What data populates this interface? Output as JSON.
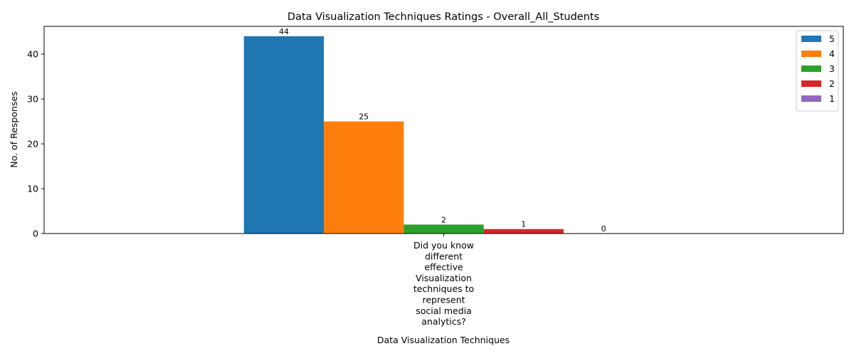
{
  "chart_data": {
    "type": "bar",
    "title": "Data Visualization Techniques Ratings - Overall_All_Students",
    "xlabel": "Data Visualization Techniques",
    "ylabel": "No. of Responses",
    "categories": [
      "Did you know different effective Visualization techniques to represent social media analytics?"
    ],
    "category_lines": [
      [
        "Did you know",
        "different",
        "effective",
        "Visualization",
        "techniques to",
        "represent",
        "social media",
        "analytics?"
      ]
    ],
    "series": [
      {
        "name": "5",
        "values": [
          44
        ],
        "color": "#1f77b4"
      },
      {
        "name": "4",
        "values": [
          25
        ],
        "color": "#ff7f0e"
      },
      {
        "name": "3",
        "values": [
          2
        ],
        "color": "#2ca02c"
      },
      {
        "name": "2",
        "values": [
          1
        ],
        "color": "#d62728"
      },
      {
        "name": "1",
        "values": [
          0
        ],
        "color": "#9467bd"
      }
    ],
    "ylim": [
      0,
      46.2
    ],
    "yticks": [
      0,
      10,
      20,
      30,
      40
    ],
    "grid": false,
    "legend_position": "top-right",
    "bar_labels": true
  }
}
